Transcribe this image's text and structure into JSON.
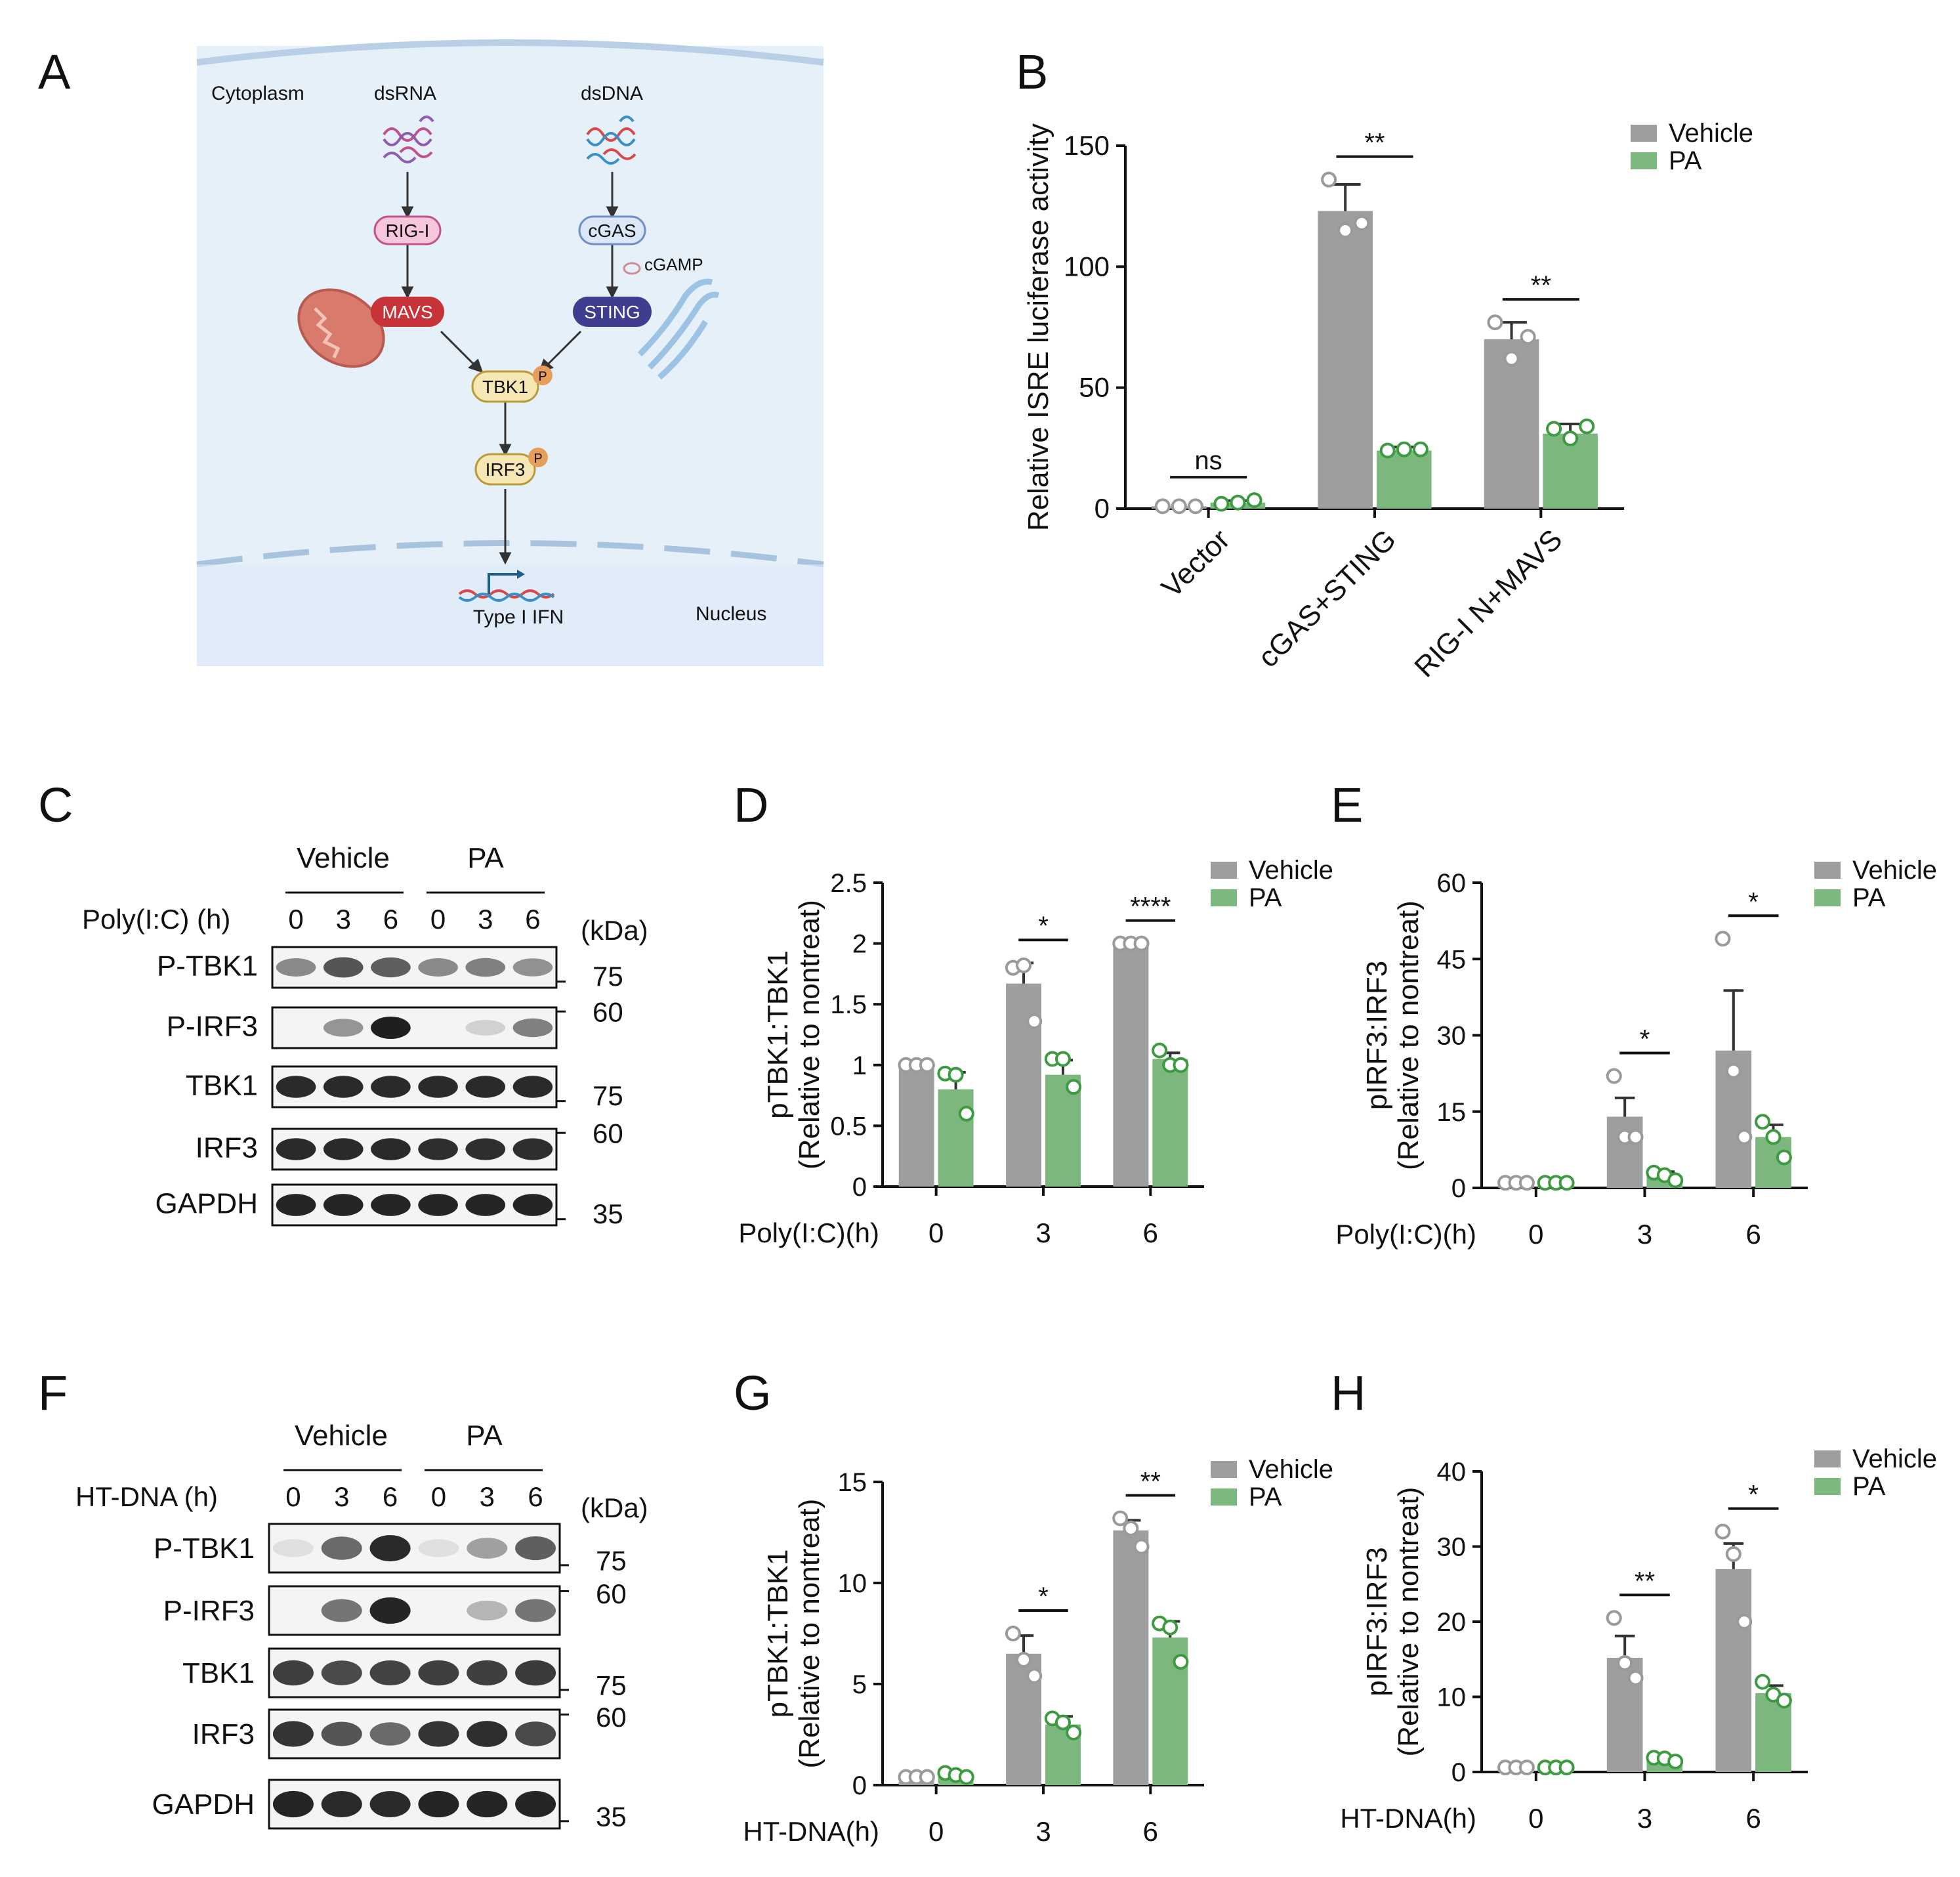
{
  "panel_letters": [
    "A",
    "B",
    "C",
    "D",
    "E",
    "F",
    "G",
    "H"
  ],
  "pathway": {
    "compartment_top": "Cytoplasm",
    "compartment_bottom": "Nucleus",
    "ligand_rna": "dsRNA",
    "ligand_dna": "dsDNA",
    "rig_i": "RIG-I",
    "cgas": "cGAS",
    "cgamp": "cGAMP",
    "mavs": "MAVS",
    "sting": "STING",
    "tbk1": "TBK1",
    "irf3": "IRF3",
    "phospho": "P",
    "output": "Type I IFN"
  },
  "western_c": {
    "groups": [
      "Vehicle",
      "PA"
    ],
    "treatment_label": "Poly(I:C) (h)",
    "times": [
      "0",
      "3",
      "6",
      "0",
      "3",
      "6"
    ],
    "unit": "(kDa)",
    "rows": [
      {
        "label": "P-TBK1",
        "kda": "75"
      },
      {
        "label": "P-IRF3",
        "kda": "60"
      },
      {
        "label": "TBK1",
        "kda": "75"
      },
      {
        "label": "IRF3",
        "kda": "60"
      },
      {
        "label": "GAPDH",
        "kda": "35"
      }
    ],
    "intensity": [
      [
        0.45,
        0.7,
        0.65,
        0.45,
        0.5,
        0.42
      ],
      [
        0.02,
        0.4,
        0.95,
        0.03,
        0.12,
        0.5
      ],
      [
        0.9,
        0.9,
        0.9,
        0.9,
        0.9,
        0.9
      ],
      [
        0.9,
        0.9,
        0.9,
        0.88,
        0.88,
        0.88
      ],
      [
        0.92,
        0.92,
        0.92,
        0.92,
        0.92,
        0.92
      ]
    ]
  },
  "western_f": {
    "groups": [
      "Vehicle",
      "PA"
    ],
    "treatment_label": "HT-DNA (h)",
    "times": [
      "0",
      "3",
      "6",
      "0",
      "3",
      "6"
    ],
    "unit": "(kDa)",
    "rows": [
      {
        "label": "P-TBK1",
        "kda": "75"
      },
      {
        "label": "P-IRF3",
        "kda": "60"
      },
      {
        "label": "TBK1",
        "kda": "75"
      },
      {
        "label": "IRF3",
        "kda": "60"
      },
      {
        "label": "GAPDH",
        "kda": "35"
      }
    ],
    "intensity": [
      [
        0.05,
        0.6,
        0.9,
        0.05,
        0.35,
        0.65
      ],
      [
        0.03,
        0.55,
        0.92,
        0.04,
        0.25,
        0.55
      ],
      [
        0.8,
        0.75,
        0.78,
        0.8,
        0.8,
        0.82
      ],
      [
        0.85,
        0.7,
        0.6,
        0.85,
        0.88,
        0.75
      ],
      [
        0.92,
        0.9,
        0.9,
        0.92,
        0.92,
        0.92
      ]
    ]
  },
  "colors": {
    "vehicle": "#9e9e9e",
    "pa": "#7cb77e",
    "pa_dot": "#3d9a40",
    "bg_cell": "#e6f0f9",
    "rig": "#f6c6dd",
    "mavs": "#c8333a",
    "cgas": "#dbe6f6",
    "sting": "#3f3d8f",
    "tbk1": "#f6e7b4",
    "phospho": "#e69f5a"
  },
  "chart_data": [
    {
      "panel": "B",
      "type": "bar",
      "categories": [
        "Vector",
        "cGAS+STING",
        "RIG-I N+MAVS"
      ],
      "ylabel": "Relative ISRE luciferase activity",
      "xlabel": "",
      "ylim": [
        0,
        150
      ],
      "yticks": [
        "0",
        "50",
        "100",
        "150"
      ],
      "legend_position": "top-right",
      "series": [
        {
          "name": "Vehicle",
          "values": [
            1,
            123,
            70
          ],
          "errors": [
            0,
            11,
            7
          ],
          "points": [
            [
              1,
              1,
              1
            ],
            [
              136,
              115,
              118
            ],
            [
              77,
              62,
              71
            ]
          ]
        },
        {
          "name": "PA",
          "values": [
            2.5,
            24,
            31
          ],
          "errors": [
            0.8,
            1.5,
            4
          ],
          "points": [
            [
              2,
              2.5,
              3.5
            ],
            [
              24,
              24.5,
              24.5
            ],
            [
              33,
              29,
              34
            ]
          ]
        }
      ],
      "significance": [
        "ns",
        "**",
        "**"
      ]
    },
    {
      "panel": "D",
      "type": "bar",
      "categories": [
        "0",
        "3",
        "6"
      ],
      "xlabel": "Poly(I:C)(h)",
      "ylabel": "pTBK1:TBK1",
      "ylabel2": "(Relative to nontreat)",
      "ylim": [
        0,
        2.5
      ],
      "yticks": [
        "0",
        "0.5",
        "1",
        "1.5",
        "2",
        "2.5"
      ],
      "legend_position": "top-right",
      "series": [
        {
          "name": "Vehicle",
          "values": [
            1,
            1.67,
            2
          ],
          "errors": [
            0,
            0.17,
            0
          ],
          "points": [
            [
              1,
              1,
              1
            ],
            [
              1.8,
              1.82,
              1.36
            ],
            [
              2,
              2,
              2
            ]
          ]
        },
        {
          "name": "PA",
          "values": [
            0.8,
            0.92,
            1.05
          ],
          "errors": [
            0.14,
            0.12,
            0.05
          ],
          "points": [
            [
              0.93,
              0.92,
              0.6
            ],
            [
              1.05,
              1.05,
              0.82
            ],
            [
              1.12,
              1.0,
              1.0
            ]
          ]
        }
      ],
      "significance": [
        "",
        "*",
        "****"
      ]
    },
    {
      "panel": "E",
      "type": "bar",
      "categories": [
        "0",
        "3",
        "6"
      ],
      "xlabel": "Poly(I:C)(h)",
      "ylabel": "pIRF3:IRF3",
      "ylabel2": "(Relative to nontreat)",
      "ylim": [
        0,
        60
      ],
      "yticks": [
        "0",
        "15",
        "30",
        "45",
        "60"
      ],
      "legend_position": "top-right",
      "series": [
        {
          "name": "Vehicle",
          "values": [
            1,
            14,
            27
          ],
          "errors": [
            0,
            3.7,
            11.8
          ],
          "points": [
            [
              1,
              1,
              1
            ],
            [
              22,
              10,
              10
            ],
            [
              49,
              23,
              10
            ]
          ]
        },
        {
          "name": "PA",
          "values": [
            1,
            2.4,
            10
          ],
          "errors": [
            0,
            0.8,
            2.4
          ],
          "points": [
            [
              1,
              1,
              1
            ],
            [
              3,
              2.5,
              1.5
            ],
            [
              13,
              10,
              6
            ]
          ]
        }
      ],
      "significance": [
        "",
        "*",
        "*"
      ]
    },
    {
      "panel": "G",
      "type": "bar",
      "categories": [
        "0",
        "3",
        "6"
      ],
      "xlabel": "HT-DNA(h)",
      "ylabel": "pTBK1:TBK1",
      "ylabel2": "(Relative to nontreat)",
      "ylim": [
        0,
        15
      ],
      "yticks": [
        "0",
        "5",
        "10",
        "15"
      ],
      "legend_position": "top-right",
      "series": [
        {
          "name": "Vehicle",
          "values": [
            0.4,
            6.5,
            12.6
          ],
          "errors": [
            0,
            0.9,
            0.5
          ],
          "points": [
            [
              0.4,
              0.4,
              0.4
            ],
            [
              7.5,
              6.2,
              5.4
            ],
            [
              13.2,
              12.7,
              11.8
            ]
          ]
        },
        {
          "name": "PA",
          "values": [
            0.5,
            3.0,
            7.3
          ],
          "errors": [
            0.1,
            0.4,
            0.8
          ],
          "points": [
            [
              0.6,
              0.5,
              0.4
            ],
            [
              3.3,
              3.1,
              2.6
            ],
            [
              8.0,
              7.8,
              6.1
            ]
          ]
        }
      ],
      "significance": [
        "",
        "*",
        "**"
      ]
    },
    {
      "panel": "H",
      "type": "bar",
      "categories": [
        "0",
        "3",
        "6"
      ],
      "xlabel": "HT-DNA(h)",
      "ylabel": "pIRF3:IRF3",
      "ylabel2": "(Relative to nontreat)",
      "ylim": [
        0,
        40
      ],
      "yticks": [
        "0",
        "10",
        "20",
        "30",
        "40"
      ],
      "legend_position": "top-right",
      "series": [
        {
          "name": "Vehicle",
          "values": [
            0.6,
            15.2,
            27
          ],
          "errors": [
            0,
            2.9,
            3.4
          ],
          "points": [
            [
              0.6,
              0.6,
              0.6
            ],
            [
              20.5,
              14.5,
              12.5
            ],
            [
              32,
              29,
              20
            ]
          ]
        },
        {
          "name": "PA",
          "values": [
            0.6,
            1.7,
            10.5
          ],
          "errors": [
            0,
            0.3,
            1.0
          ],
          "points": [
            [
              0.6,
              0.6,
              0.6
            ],
            [
              1.9,
              1.8,
              1.4
            ],
            [
              12,
              10.3,
              9.5
            ]
          ]
        }
      ],
      "significance": [
        "",
        "**",
        "*"
      ]
    }
  ]
}
